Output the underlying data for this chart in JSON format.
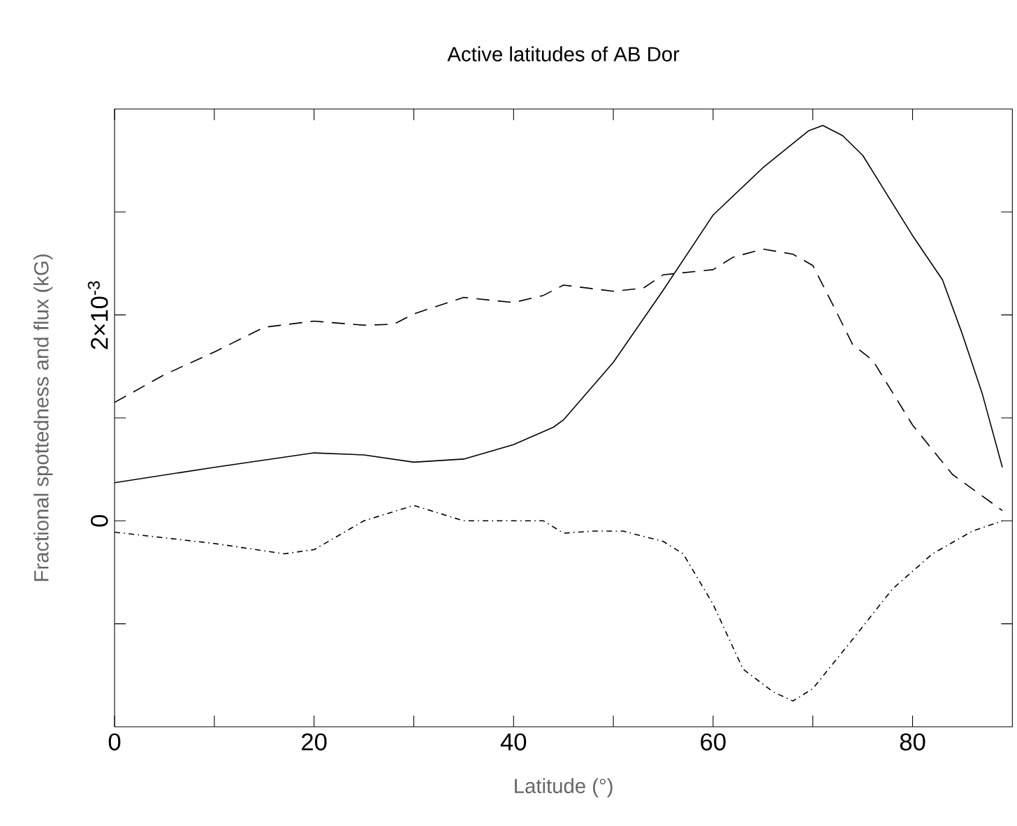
{
  "chart_data": {
    "type": "line",
    "title": "Active latitudes of AB Dor",
    "xlabel": "Latitude (°)",
    "ylabel": "Fractional spottedness and flux (kG)",
    "xlim": [
      0,
      90
    ],
    "ylim": [
      -0.002,
      0.004
    ],
    "xticks": [
      0,
      {
        "value": 10,
        "label": null
      },
      20,
      {
        "value": 30,
        "label": null
      },
      40,
      {
        "value": 50,
        "label": null
      },
      60,
      {
        "value": 70,
        "label": null
      },
      80
    ],
    "yticks": [
      {
        "value": -0.001,
        "label": null
      },
      0,
      {
        "value": 0.001,
        "label": null
      },
      {
        "value": 0.002,
        "label": "2×10$^{-3}$"
      },
      {
        "value": 0.003,
        "label": null
      }
    ],
    "series": [
      {
        "color": "#000000",
        "line_style": "solid",
        "x": [
          0,
          10,
          20,
          25,
          30,
          35,
          40,
          44,
          45,
          50,
          55,
          60,
          65,
          69.6,
          71,
          73,
          75,
          80,
          83,
          85,
          87,
          89
        ],
        "values": [
          0.00037,
          0.00052,
          0.00066,
          0.00064,
          0.00057,
          0.0006,
          0.00074,
          0.00091,
          0.00098,
          0.00154,
          0.00224,
          0.00297,
          0.00343,
          0.00379,
          0.00384,
          0.00374,
          0.00355,
          0.00277,
          0.00234,
          0.00181,
          0.00123,
          0.00052
        ]
      },
      {
        "color": "#000000",
        "line_style": "dashed",
        "x": [
          0,
          5,
          10,
          15,
          20,
          25,
          28,
          30,
          35,
          40,
          43,
          45,
          50,
          53,
          55,
          60,
          62,
          65,
          68,
          70,
          72,
          74,
          76,
          80,
          84,
          89
        ],
        "values": [
          0.00115,
          0.00142,
          0.00164,
          0.00188,
          0.00194,
          0.0019,
          0.00191,
          0.00201,
          0.00217,
          0.00212,
          0.00219,
          0.00229,
          0.00223,
          0.00226,
          0.00239,
          0.00244,
          0.00256,
          0.00264,
          0.00259,
          0.00248,
          0.0021,
          0.00171,
          0.00156,
          0.00093,
          0.00045,
          0.0001
        ]
      },
      {
        "color": "#000000",
        "line_style": "dashdot",
        "x": [
          0,
          10,
          17,
          20,
          25,
          30,
          35,
          40,
          43,
          45,
          48,
          51,
          55,
          57,
          60,
          63,
          66,
          68,
          70,
          74,
          78,
          82,
          86,
          89
        ],
        "values": [
          -0.00011,
          -0.00022,
          -0.00032,
          -0.00028,
          0.0,
          0.00015,
          0.0,
          0.0,
          0.0,
          -0.00012,
          -0.0001,
          -0.0001,
          -0.0002,
          -0.00032,
          -0.00081,
          -0.00144,
          -0.00166,
          -0.00175,
          -0.00163,
          -0.00115,
          -0.00066,
          -0.00032,
          -0.0001,
          0.0
        ]
      }
    ]
  }
}
